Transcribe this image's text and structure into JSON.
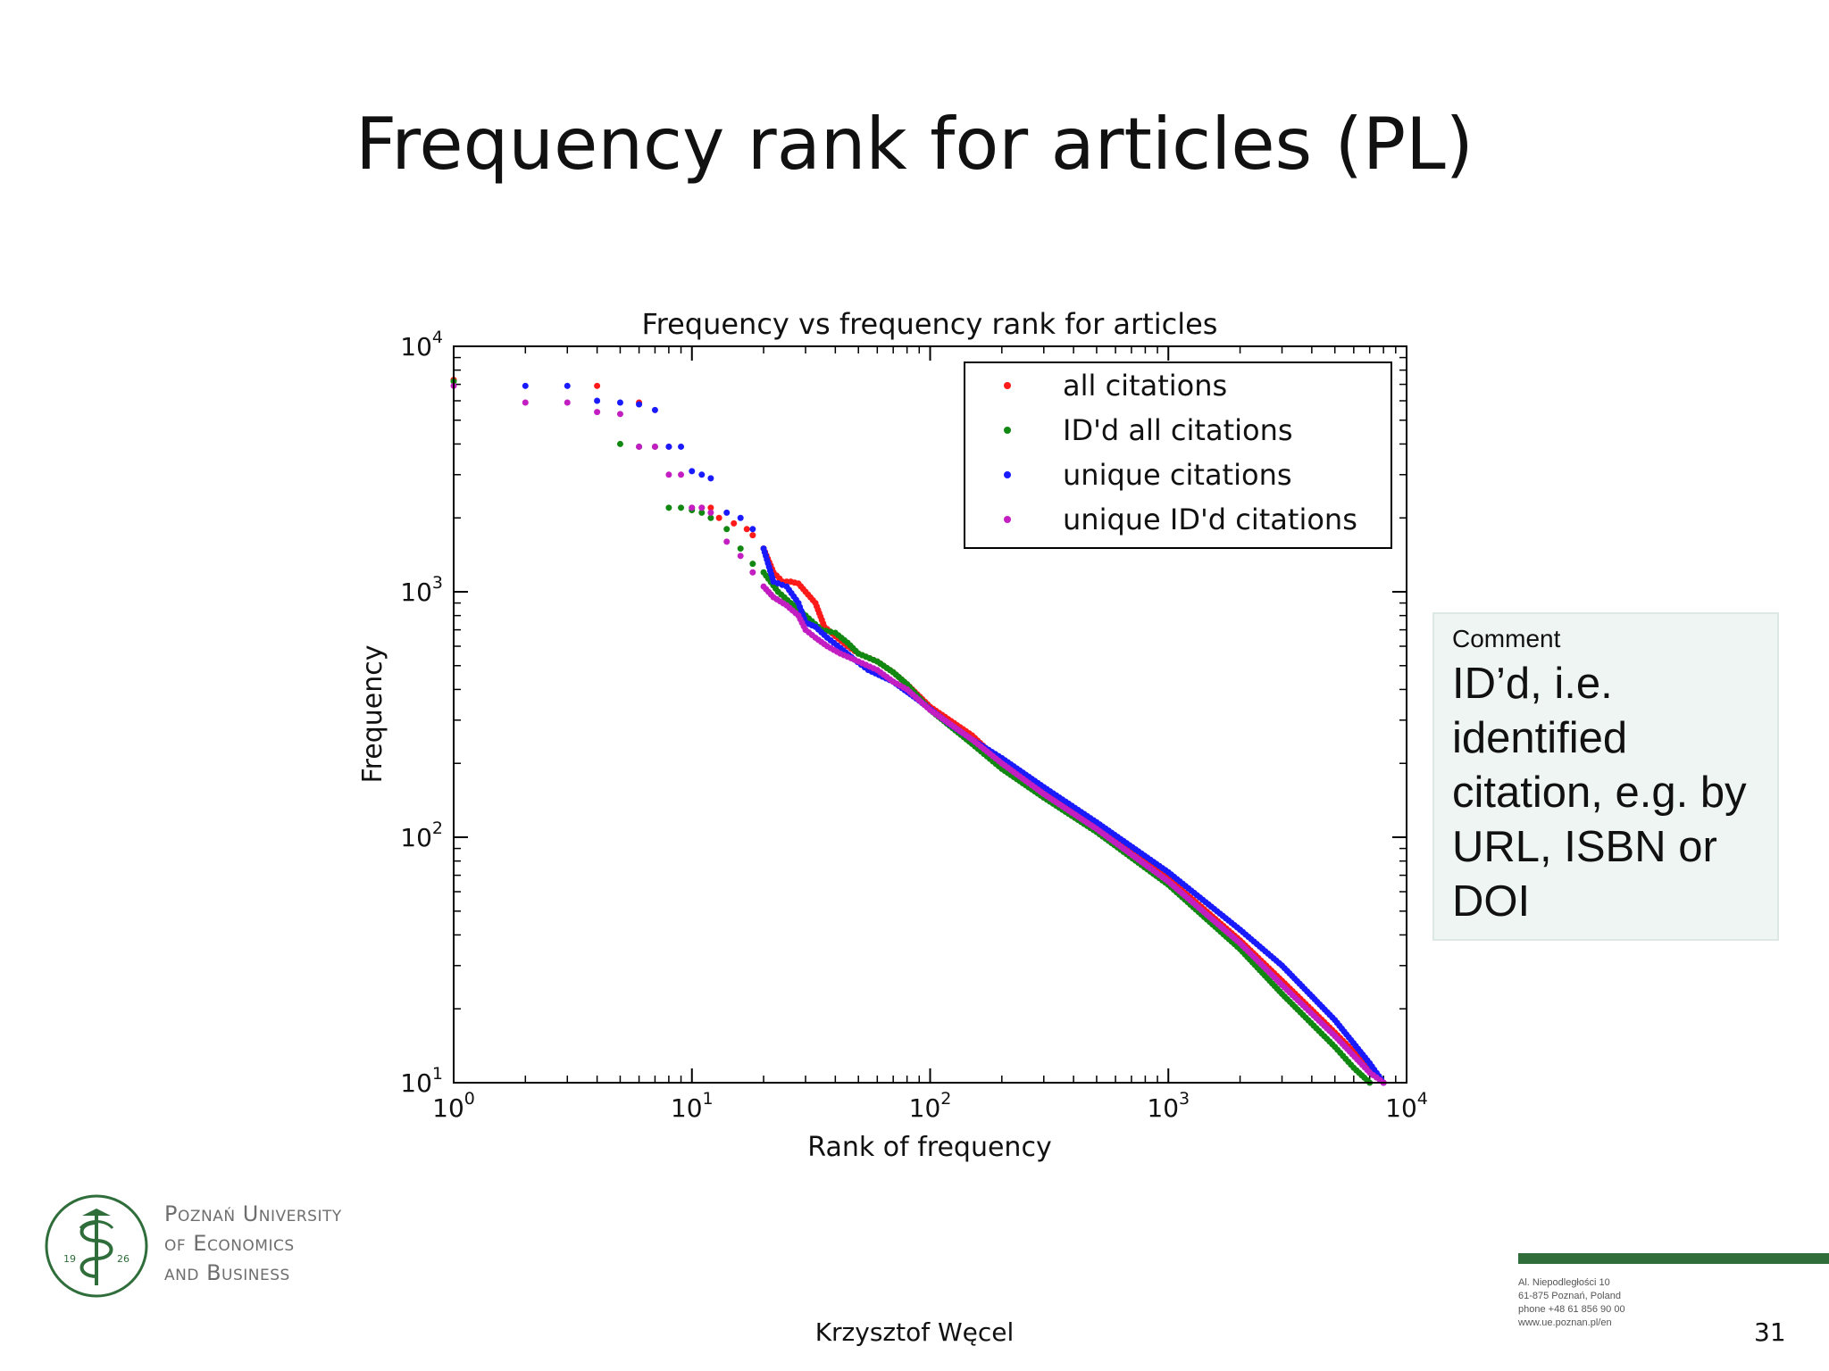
{
  "slide": {
    "title": "Frequency rank for articles (PL)",
    "author": "Krzysztof Węcel",
    "page_number": "31"
  },
  "comment": {
    "heading": "Comment",
    "text": "ID’d, i.e. identified citation, e.g. by URL, ISBN or DOI"
  },
  "logo": {
    "line1": "Poznań University",
    "line2": "of Economics",
    "line3": "and Business",
    "year_left": "19",
    "year_right": "26"
  },
  "address": {
    "line1": "Al. Niepodległości 10",
    "line2": "61-875 Poznań, Poland",
    "line3": "phone +48 61 856 90 00",
    "line4": "www.ue.poznan.pl/en"
  },
  "colors": {
    "all_citations": "#ff1a1a",
    "id_all_citations": "#118811",
    "unique_citations": "#1a1aff",
    "unique_id_citations": "#c21ec2",
    "accent_green": "#2f6d3a"
  },
  "chart_data": {
    "type": "scatter",
    "title": "Frequency vs frequency rank for articles",
    "xlabel": "Rank of frequency",
    "ylabel": "Frequency",
    "xscale": "log",
    "yscale": "log",
    "xlim": [
      1,
      10000
    ],
    "ylim": [
      10,
      10000
    ],
    "x_ticks": [
      {
        "base": "10",
        "exp": "0"
      },
      {
        "base": "10",
        "exp": "1"
      },
      {
        "base": "10",
        "exp": "2"
      },
      {
        "base": "10",
        "exp": "3"
      },
      {
        "base": "10",
        "exp": "4"
      }
    ],
    "y_ticks": [
      {
        "base": "10",
        "exp": "1"
      },
      {
        "base": "10",
        "exp": "2"
      },
      {
        "base": "10",
        "exp": "3"
      },
      {
        "base": "10",
        "exp": "4"
      }
    ],
    "legend_position": "top-right",
    "grid": false,
    "series": [
      {
        "name": "all citations",
        "color": "#ff1a1a",
        "points": [
          [
            1,
            7300
          ],
          [
            4,
            6900
          ],
          [
            6,
            5900
          ],
          [
            8,
            3900
          ],
          [
            10,
            2200
          ],
          [
            11,
            2200
          ],
          [
            12,
            2200
          ],
          [
            13,
            2000
          ],
          [
            15,
            1900
          ],
          [
            17,
            1800
          ],
          [
            18,
            1700
          ],
          [
            20,
            1500
          ],
          [
            22,
            1200
          ],
          [
            24,
            1100
          ],
          [
            26,
            1100
          ],
          [
            28,
            1080
          ],
          [
            30,
            1000
          ],
          [
            33,
            900
          ],
          [
            36,
            720
          ],
          [
            40,
            660
          ],
          [
            45,
            600
          ],
          [
            50,
            560
          ],
          [
            60,
            520
          ],
          [
            70,
            470
          ],
          [
            80,
            420
          ],
          [
            100,
            340
          ],
          [
            150,
            260
          ],
          [
            200,
            200
          ],
          [
            300,
            155
          ],
          [
            500,
            110
          ],
          [
            1000,
            68
          ],
          [
            2000,
            38
          ],
          [
            3000,
            26
          ],
          [
            5000,
            16
          ],
          [
            7000,
            11.5
          ],
          [
            8000,
            10
          ]
        ]
      },
      {
        "name": "ID'd all citations",
        "color": "#118811",
        "points": [
          [
            1,
            7200
          ],
          [
            5,
            4000
          ],
          [
            6,
            3900
          ],
          [
            7,
            3900
          ],
          [
            8,
            2200
          ],
          [
            9,
            2200
          ],
          [
            10,
            2150
          ],
          [
            11,
            2100
          ],
          [
            12,
            2000
          ],
          [
            14,
            1800
          ],
          [
            16,
            1500
          ],
          [
            18,
            1300
          ],
          [
            20,
            1200
          ],
          [
            23,
            1000
          ],
          [
            26,
            900
          ],
          [
            30,
            800
          ],
          [
            35,
            700
          ],
          [
            40,
            680
          ],
          [
            45,
            620
          ],
          [
            50,
            560
          ],
          [
            60,
            520
          ],
          [
            70,
            470
          ],
          [
            80,
            420
          ],
          [
            100,
            330
          ],
          [
            150,
            240
          ],
          [
            200,
            190
          ],
          [
            300,
            145
          ],
          [
            500,
            105
          ],
          [
            1000,
            64
          ],
          [
            2000,
            35
          ],
          [
            3000,
            23
          ],
          [
            5000,
            14
          ],
          [
            6000,
            11.5
          ],
          [
            7000,
            10
          ]
        ]
      },
      {
        "name": "unique citations",
        "color": "#1a1aff",
        "points": [
          [
            2,
            6900
          ],
          [
            3,
            6900
          ],
          [
            4,
            6000
          ],
          [
            5,
            5900
          ],
          [
            6,
            5800
          ],
          [
            7,
            5500
          ],
          [
            8,
            3900
          ],
          [
            9,
            3900
          ],
          [
            10,
            3100
          ],
          [
            11,
            3000
          ],
          [
            12,
            2900
          ],
          [
            14,
            2100
          ],
          [
            16,
            2000
          ],
          [
            18,
            1800
          ],
          [
            20,
            1500
          ],
          [
            22,
            1100
          ],
          [
            25,
            1050
          ],
          [
            28,
            900
          ],
          [
            30,
            750
          ],
          [
            33,
            720
          ],
          [
            37,
            650
          ],
          [
            42,
            590
          ],
          [
            48,
            530
          ],
          [
            55,
            480
          ],
          [
            70,
            430
          ],
          [
            90,
            360
          ],
          [
            120,
            290
          ],
          [
            150,
            250
          ],
          [
            200,
            210
          ],
          [
            300,
            160
          ],
          [
            500,
            115
          ],
          [
            1000,
            72
          ],
          [
            2000,
            42
          ],
          [
            3000,
            30
          ],
          [
            5000,
            18
          ],
          [
            7000,
            12
          ],
          [
            8000,
            10
          ]
        ]
      },
      {
        "name": "unique ID'd citations",
        "color": "#c21ec2",
        "points": [
          [
            1,
            6900
          ],
          [
            2,
            5900
          ],
          [
            3,
            5900
          ],
          [
            4,
            5400
          ],
          [
            5,
            5300
          ],
          [
            6,
            3900
          ],
          [
            7,
            3900
          ],
          [
            8,
            3000
          ],
          [
            9,
            3000
          ],
          [
            10,
            2200
          ],
          [
            11,
            2200
          ],
          [
            12,
            2100
          ],
          [
            14,
            1600
          ],
          [
            16,
            1400
          ],
          [
            18,
            1200
          ],
          [
            20,
            1050
          ],
          [
            22,
            950
          ],
          [
            25,
            880
          ],
          [
            28,
            800
          ],
          [
            30,
            700
          ],
          [
            33,
            650
          ],
          [
            37,
            600
          ],
          [
            42,
            560
          ],
          [
            50,
            520
          ],
          [
            60,
            480
          ],
          [
            70,
            430
          ],
          [
            80,
            400
          ],
          [
            100,
            330
          ],
          [
            150,
            250
          ],
          [
            200,
            200
          ],
          [
            300,
            150
          ],
          [
            500,
            108
          ],
          [
            1000,
            66
          ],
          [
            2000,
            37
          ],
          [
            3000,
            25
          ],
          [
            5000,
            15.5
          ],
          [
            7000,
            11
          ],
          [
            8000,
            10
          ]
        ]
      }
    ]
  }
}
